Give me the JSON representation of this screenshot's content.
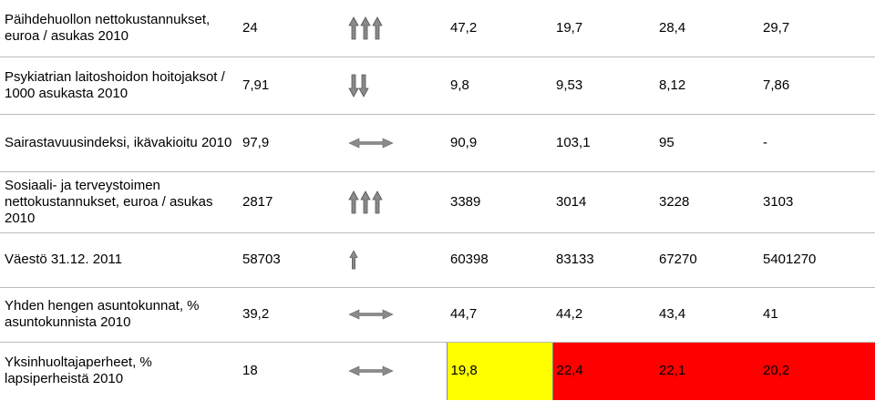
{
  "rows": [
    {
      "label": "Päihdehuollon nettokustannukset, euroa / asukas 2010",
      "values": [
        "24",
        "47,2",
        "19,7",
        "28,4",
        "29,7"
      ]
    },
    {
      "label": "Psykiatrian laitoshoidon hoitojaksot / 1000 asukasta 2010",
      "values": [
        "7,91",
        "9,8",
        "9,53",
        "8,12",
        "7,86"
      ]
    },
    {
      "label": "Sairastavuusindeksi, ikävakioitu 2010",
      "values": [
        "97,9",
        "90,9",
        "103,1",
        "95",
        "-"
      ]
    },
    {
      "label": "Sosiaali- ja terveystoimen nettokustannukset, euroa / asukas 2010",
      "values": [
        "2817",
        "3389",
        "3014",
        "3228",
        "3103"
      ]
    },
    {
      "label": "Väestö 31.12. 2011",
      "values": [
        "58703",
        "60398",
        "83133",
        "67270",
        "5401270"
      ]
    },
    {
      "label": "Yhden hengen asuntokunnat, % asuntokunnista 2010",
      "values": [
        "39,2",
        "44,7",
        "44,2",
        "43,4",
        "41"
      ]
    },
    {
      "label": "Yksinhuoltajaperheet, % lapsiperheistä 2010",
      "values": [
        "18",
        "19,8",
        "22,4",
        "22,1",
        "20,2"
      ]
    }
  ]
}
